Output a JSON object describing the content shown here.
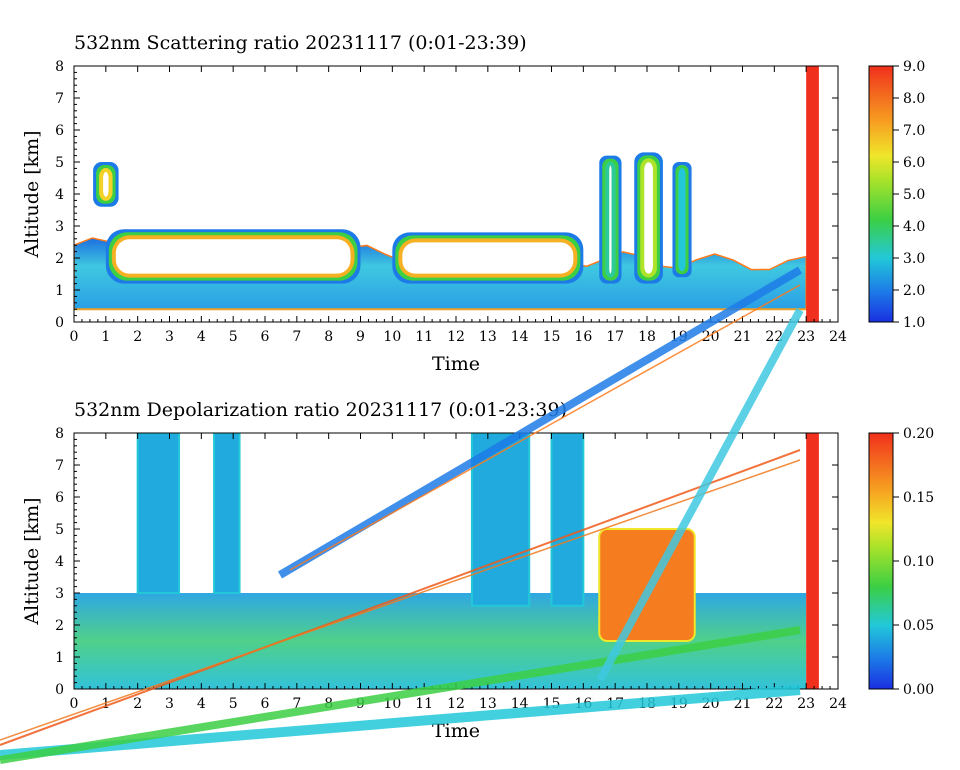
{
  "chart_data": [
    {
      "type": "heatmap",
      "title": "532nm Scattering ratio  20231117 (0:01-23:39)",
      "xlabel": "Time",
      "ylabel": "Altitude [km]",
      "xlim": [
        0,
        24
      ],
      "ylim": [
        0,
        8
      ],
      "x_ticks": [
        "0",
        "1",
        "2",
        "3",
        "4",
        "5",
        "6",
        "7",
        "8",
        "9",
        "10",
        "11",
        "12",
        "13",
        "14",
        "15",
        "16",
        "17",
        "18",
        "19",
        "20",
        "21",
        "22",
        "23",
        "24"
      ],
      "y_ticks": [
        "0",
        "1",
        "2",
        "3",
        "4",
        "5",
        "6",
        "7",
        "8"
      ],
      "colorbar": {
        "min": 1.0,
        "max": 9.0,
        "tick_labels": [
          "1.0",
          "2.0",
          "3.0",
          "4.0",
          "5.0",
          "6.0",
          "7.0",
          "8.0",
          "9.0"
        ]
      },
      "features": [
        {
          "kind": "boundary_layer",
          "x": [
            0,
            23
          ],
          "y_top": [
            2.4,
            1.8
          ],
          "value": 2.5
        },
        {
          "kind": "cloud",
          "x": [
            0.6,
            1.4
          ],
          "y": [
            3.6,
            5.0
          ],
          "value": 6.5
        },
        {
          "kind": "cloud",
          "x": [
            1.0,
            9.0
          ],
          "y": [
            1.2,
            2.9
          ],
          "value": 7.0
        },
        {
          "kind": "cloud",
          "x": [
            10.0,
            16.0
          ],
          "y": [
            1.2,
            2.8
          ],
          "value": 7.0
        },
        {
          "kind": "cloud",
          "x": [
            16.5,
            17.2
          ],
          "y": [
            1.2,
            5.2
          ],
          "value": 3.5
        },
        {
          "kind": "cloud",
          "x": [
            17.6,
            18.5
          ],
          "y": [
            1.2,
            5.3
          ],
          "value": 5.5
        },
        {
          "kind": "cloud",
          "x": [
            18.8,
            19.4
          ],
          "y": [
            1.4,
            5.0
          ],
          "value": 3.0
        },
        {
          "kind": "no_data_bar",
          "x": [
            23.0,
            23.4
          ],
          "y": [
            0,
            8
          ],
          "value": 9.0
        }
      ]
    },
    {
      "type": "heatmap",
      "title": "532nm Depolarization ratio  20231117 (0:01-23:39)",
      "xlabel": "Time",
      "ylabel": "Altitude [km]",
      "xlim": [
        0,
        24
      ],
      "ylim": [
        0,
        8
      ],
      "x_ticks": [
        "0",
        "1",
        "2",
        "3",
        "4",
        "5",
        "6",
        "7",
        "8",
        "9",
        "10",
        "11",
        "12",
        "13",
        "14",
        "15",
        "16",
        "17",
        "18",
        "19",
        "20",
        "21",
        "22",
        "23",
        "24"
      ],
      "y_ticks": [
        "0",
        "1",
        "2",
        "3",
        "4",
        "5",
        "6",
        "7",
        "8"
      ],
      "colorbar": {
        "min": 0.0,
        "max": 0.2,
        "tick_labels": [
          "0.00",
          "0.05",
          "0.10",
          "0.15",
          "0.20"
        ]
      },
      "features": [
        {
          "kind": "low_layer",
          "x": [
            0,
            23
          ],
          "y": [
            0,
            3.0
          ],
          "value": 0.05
        },
        {
          "kind": "column",
          "x": [
            2.0,
            3.3
          ],
          "y": [
            3.0,
            8.0
          ],
          "value": 0.04
        },
        {
          "kind": "column",
          "x": [
            4.4,
            5.2
          ],
          "y": [
            3.0,
            8.0
          ],
          "value": 0.04
        },
        {
          "kind": "column",
          "x": [
            12.5,
            14.3
          ],
          "y": [
            2.6,
            8.0
          ],
          "value": 0.04
        },
        {
          "kind": "column",
          "x": [
            15.0,
            16.0
          ],
          "y": [
            2.6,
            8.0
          ],
          "value": 0.04
        },
        {
          "kind": "high_patch",
          "x": [
            16.5,
            19.5
          ],
          "y": [
            1.5,
            5.0
          ],
          "value": 0.17
        },
        {
          "kind": "no_data_bar",
          "x": [
            23.0,
            23.4
          ],
          "y": [
            0,
            8
          ],
          "value": 0.2
        }
      ]
    }
  ]
}
